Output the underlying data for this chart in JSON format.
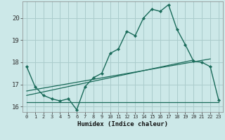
{
  "xlabel": "Humidex (Indice chaleur)",
  "bg_color": "#cce8e8",
  "grid_color": "#aacccc",
  "line_color": "#1a6b5a",
  "xlim": [
    -0.5,
    23.5
  ],
  "ylim": [
    15.75,
    20.75
  ],
  "xticks": [
    0,
    1,
    2,
    3,
    4,
    5,
    6,
    7,
    8,
    9,
    10,
    11,
    12,
    13,
    14,
    15,
    16,
    17,
    18,
    19,
    20,
    21,
    22,
    23
  ],
  "yticks": [
    16,
    17,
    18,
    19,
    20
  ],
  "line1_x": [
    0,
    1,
    2,
    3,
    4,
    5,
    6,
    7,
    8,
    9,
    10,
    11,
    12,
    13,
    14,
    15,
    16,
    17,
    18,
    19,
    20,
    21,
    22,
    23
  ],
  "line1_y": [
    17.8,
    16.9,
    16.5,
    16.35,
    16.25,
    16.35,
    15.85,
    16.9,
    17.3,
    17.5,
    18.4,
    18.6,
    19.4,
    19.2,
    20.0,
    20.4,
    20.3,
    20.6,
    19.5,
    18.8,
    18.05,
    18.0,
    17.8,
    16.3
  ],
  "line2_x": [
    0,
    23
  ],
  "line2_y": [
    16.2,
    16.2
  ],
  "line3_x": [
    0,
    20
  ],
  "line3_y": [
    16.5,
    18.1
  ],
  "line4_x": [
    0,
    22
  ],
  "line4_y": [
    16.7,
    18.15
  ]
}
